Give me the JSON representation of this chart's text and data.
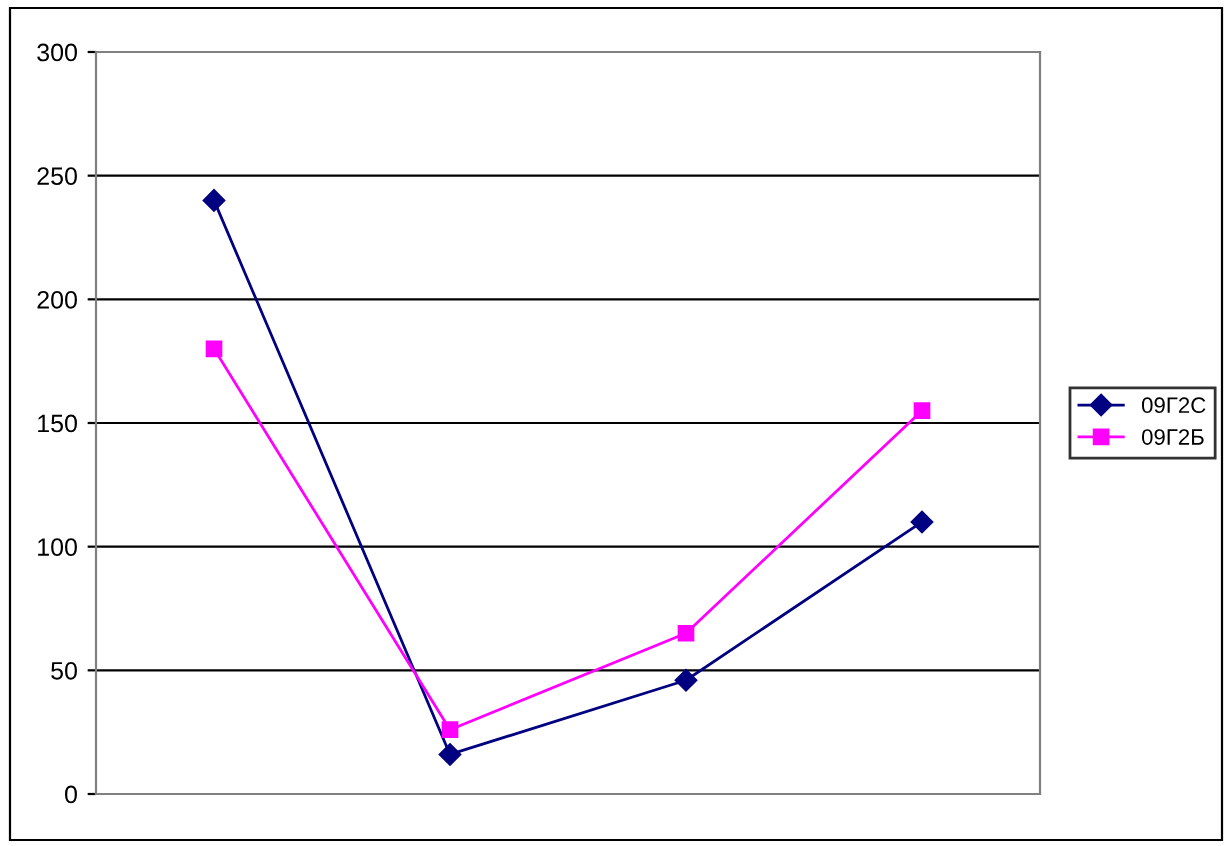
{
  "chart_data": {
    "type": "line",
    "categories": [
      null,
      null,
      null,
      null
    ],
    "series": [
      {
        "name": "09Г2С",
        "color": "#000080",
        "marker": "diamond",
        "values": [
          240,
          16,
          46,
          110
        ]
      },
      {
        "name": "09Г2Б",
        "color": "#ff00ff",
        "marker": "square",
        "values": [
          180,
          26,
          65,
          155
        ]
      }
    ],
    "ylim": [
      0,
      300
    ],
    "yticks": [
      0,
      50,
      100,
      150,
      200,
      250,
      300
    ],
    "grid": "y",
    "legend": "right",
    "line_style": "solid"
  }
}
